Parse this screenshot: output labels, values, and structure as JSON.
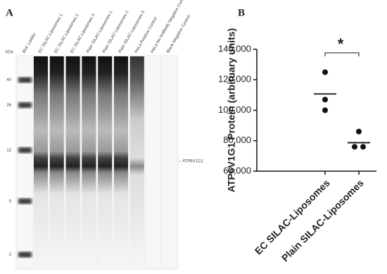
{
  "chart_data": [
    {
      "type": "gel",
      "panel": "A",
      "y_label": "kDa",
      "categories": [
        "Biot. Ladder",
        "EC SILAC-Liposomes 1",
        "EC SILAC-Liposomes 2",
        "EC SILAC-Liposomes 3",
        "Plain SILAC-Liposomes 1",
        "Plain SILAC-Liposomes 2",
        "Plain SILAC-Liposomes 3",
        "HeLa Positive Control",
        "HeLa No Antibody Negative Control",
        "Blank Negative Control"
      ],
      "ylim": [
        1.6,
        60
      ],
      "log_scale": true,
      "yticks": [
        40,
        26,
        12,
        5,
        2
      ],
      "annotation": "ATP6V1G1"
    },
    {
      "type": "strip",
      "panel": "B",
      "y_label": "ATP6V1G1 Protein (arbituary units)",
      "categories": [
        "EC SILAC-Liposomes",
        "Plain SILAC-Liposomes"
      ],
      "values": [
        [
          125000,
          107000,
          100000
        ],
        [
          86000,
          76000,
          76000
        ]
      ],
      "means": [
        110700,
        78700
      ],
      "color": "#111111",
      "ylim": [
        60000,
        140000
      ],
      "yticks": [
        {
          "value": 60000,
          "label": "60,000"
        },
        {
          "value": 80000,
          "label": "80,000"
        },
        {
          "value": 100000,
          "label": "100,000"
        },
        {
          "value": 120000,
          "label": "120,000"
        },
        {
          "value": 140000,
          "label": "140,000"
        }
      ],
      "annotation": "*"
    }
  ]
}
